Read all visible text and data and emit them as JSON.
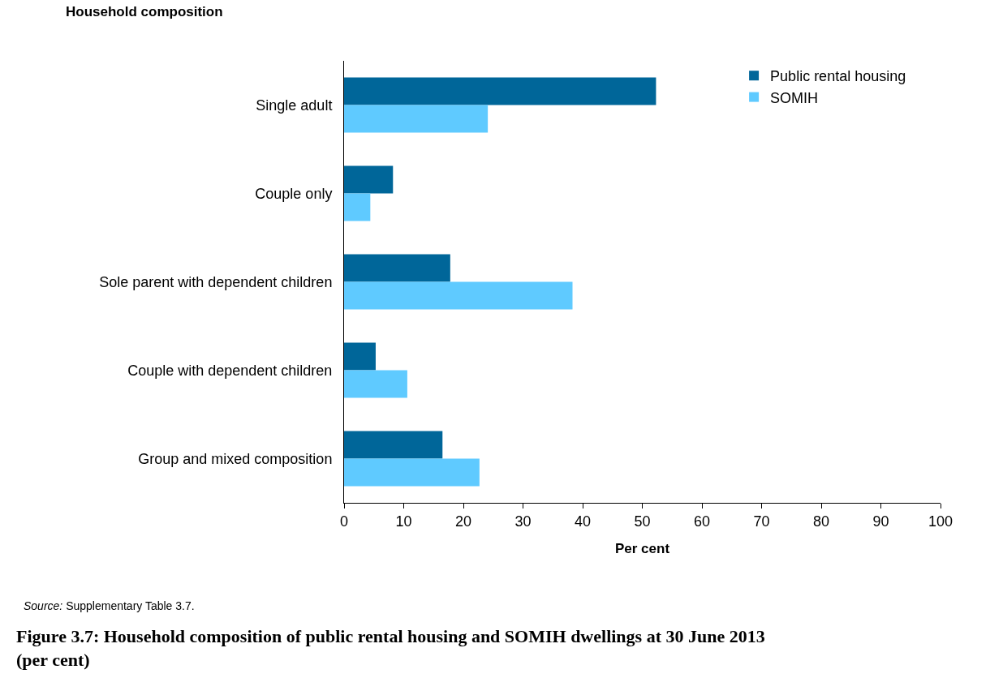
{
  "chart_data": {
    "type": "bar",
    "orientation": "horizontal",
    "title": "Figure 3.7: Household composition of public rental housing and SOMIH dwellings at 30 June 2013 (per cent)",
    "ylabel": "Household composition",
    "xlabel": "Per cent",
    "categories": [
      "Single adult",
      "Couple only",
      "Sole parent with dependent children",
      "Couple with dependent children",
      "Group and mixed composition"
    ],
    "series": [
      {
        "name": "Public rental housing",
        "color": "#006699",
        "values": [
          52.3,
          8.2,
          17.8,
          5.3,
          16.5
        ]
      },
      {
        "name": "SOMIH",
        "color": "#5fcaff",
        "values": [
          24.1,
          4.4,
          38.3,
          10.6,
          22.7
        ]
      }
    ],
    "xlim": [
      0,
      100
    ],
    "xticks": [
      0,
      10,
      20,
      30,
      40,
      50,
      60,
      70,
      80,
      90,
      100
    ],
    "grid": false,
    "legend": "top right",
    "annotations": [
      "Source: Supplementary Table 3.7."
    ]
  }
}
